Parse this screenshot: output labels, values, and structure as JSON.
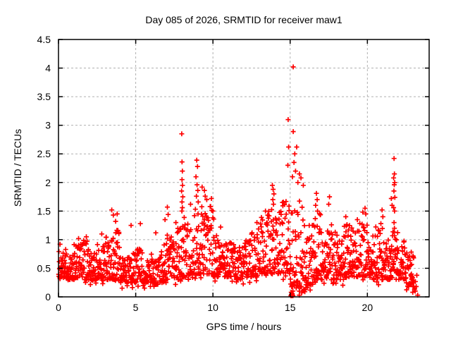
{
  "figure": {
    "background": "#ffffff",
    "frame_color": "#000000"
  },
  "chart_data": {
    "type": "scatter",
    "title": "Day 085 of 2026, SRMTID for receiver maw1",
    "xlabel": "GPS time / hours",
    "ylabel": "SRMTID / TECUs",
    "x_axis": {
      "min": 0,
      "max": 24,
      "ticks": [
        0,
        5,
        10,
        15,
        20
      ]
    },
    "y_axis": {
      "min": 0,
      "max": 4.5,
      "ticks": [
        0,
        0.5,
        1,
        1.5,
        2,
        2.5,
        3,
        3.5,
        4,
        4.5
      ]
    },
    "grid": {
      "show": true,
      "color": "#b0b0b0",
      "dash": "3,3"
    },
    "marker": {
      "shape": "plus",
      "color": "#ff0000",
      "size": 7,
      "stroke_width": 1.7
    },
    "legend": "none",
    "seed": 2026085,
    "band": {
      "comment": "dense baseline band of 30-second SRMTID samples, estimated envelope per 0.5 h bin: [hour_center, low, high, n_points]",
      "skew": 1.7,
      "bin_width": 0.5,
      "bins": [
        [
          0.25,
          0.33,
          0.85,
          34
        ],
        [
          0.75,
          0.3,
          0.75,
          34
        ],
        [
          1.25,
          0.33,
          0.95,
          34
        ],
        [
          1.75,
          0.3,
          1.0,
          34
        ],
        [
          2.25,
          0.3,
          0.8,
          34
        ],
        [
          2.75,
          0.32,
          0.95,
          34
        ],
        [
          3.25,
          0.3,
          1.05,
          34
        ],
        [
          3.75,
          0.28,
          1.2,
          34
        ],
        [
          4.25,
          0.25,
          0.7,
          34
        ],
        [
          4.75,
          0.25,
          0.8,
          34
        ],
        [
          5.25,
          0.25,
          0.85,
          34
        ],
        [
          5.75,
          0.25,
          0.65,
          34
        ],
        [
          6.25,
          0.22,
          0.75,
          34
        ],
        [
          6.75,
          0.25,
          0.95,
          34
        ],
        [
          7.25,
          0.3,
          1.1,
          34
        ],
        [
          7.75,
          0.3,
          1.2,
          34
        ],
        [
          8.25,
          0.35,
          1.4,
          34
        ],
        [
          8.75,
          0.4,
          1.55,
          34
        ],
        [
          9.25,
          0.4,
          1.7,
          34
        ],
        [
          9.75,
          0.4,
          1.6,
          34
        ],
        [
          10.25,
          0.35,
          1.1,
          34
        ],
        [
          10.75,
          0.35,
          0.95,
          34
        ],
        [
          11.25,
          0.35,
          0.95,
          34
        ],
        [
          11.75,
          0.3,
          0.9,
          34
        ],
        [
          12.25,
          0.35,
          1.0,
          34
        ],
        [
          12.75,
          0.35,
          1.2,
          34
        ],
        [
          13.25,
          0.4,
          1.4,
          34
        ],
        [
          13.75,
          0.4,
          1.6,
          34
        ],
        [
          14.25,
          0.4,
          1.55,
          34
        ],
        [
          14.75,
          0.4,
          1.7,
          34
        ],
        [
          15.25,
          0.15,
          1.6,
          34
        ],
        [
          15.75,
          0.1,
          1.8,
          34
        ],
        [
          16.25,
          0.2,
          1.3,
          34
        ],
        [
          16.75,
          0.3,
          1.5,
          34
        ],
        [
          17.25,
          0.3,
          1.2,
          34
        ],
        [
          17.75,
          0.3,
          1.5,
          34
        ],
        [
          18.25,
          0.3,
          1.1,
          34
        ],
        [
          18.75,
          0.35,
          1.35,
          34
        ],
        [
          19.25,
          0.35,
          1.2,
          34
        ],
        [
          19.75,
          0.35,
          1.55,
          34
        ],
        [
          20.25,
          0.3,
          1.1,
          34
        ],
        [
          20.75,
          0.3,
          1.3,
          34
        ],
        [
          21.25,
          0.3,
          1.0,
          34
        ],
        [
          21.75,
          0.35,
          1.2,
          34
        ],
        [
          22.25,
          0.3,
          1.0,
          34
        ],
        [
          22.75,
          0.18,
          0.8,
          30
        ],
        [
          23.05,
          0.08,
          0.4,
          10
        ]
      ]
    },
    "outliers": [
      [
        0.1,
        0.92
      ],
      [
        1.3,
        1.02
      ],
      [
        1.8,
        1.05
      ],
      [
        2.8,
        1.1
      ],
      [
        3.45,
        1.52
      ],
      [
        3.55,
        1.43
      ],
      [
        3.8,
        1.45
      ],
      [
        3.7,
        1.32
      ],
      [
        4.7,
        1.25
      ],
      [
        5.3,
        1.28
      ],
      [
        6.3,
        1.12
      ],
      [
        6.9,
        1.35
      ],
      [
        7.05,
        1.57
      ],
      [
        7.1,
        1.44
      ],
      [
        7.6,
        1.3
      ],
      [
        7.98,
        2.85
      ],
      [
        8.0,
        2.36
      ],
      [
        8.02,
        2.2
      ],
      [
        8.0,
        2.05
      ],
      [
        8.03,
        1.95
      ],
      [
        7.97,
        1.85
      ],
      [
        8.05,
        1.75
      ],
      [
        8.0,
        1.66
      ],
      [
        8.02,
        1.56
      ],
      [
        7.99,
        1.5
      ],
      [
        8.55,
        1.62
      ],
      [
        8.95,
        2.39
      ],
      [
        9.0,
        2.28
      ],
      [
        8.9,
        2.1
      ],
      [
        8.97,
        1.96
      ],
      [
        9.02,
        1.86
      ],
      [
        8.93,
        1.76
      ],
      [
        9.05,
        1.66
      ],
      [
        9.3,
        1.92
      ],
      [
        9.45,
        1.86
      ],
      [
        9.5,
        1.76
      ],
      [
        9.6,
        1.7
      ],
      [
        9.9,
        1.72
      ],
      [
        10.0,
        1.5
      ],
      [
        10.05,
        1.36
      ],
      [
        10.5,
        1.22
      ],
      [
        12.85,
        1.3
      ],
      [
        13.4,
        1.5
      ],
      [
        13.85,
        1.95
      ],
      [
        13.9,
        1.88
      ],
      [
        13.95,
        1.8
      ],
      [
        13.88,
        1.7
      ],
      [
        13.92,
        1.62
      ],
      [
        14.5,
        1.65
      ],
      [
        14.87,
        3.1
      ],
      [
        14.9,
        2.62
      ],
      [
        14.85,
        2.3
      ],
      [
        15.2,
        4.02
      ],
      [
        15.2,
        2.89
      ],
      [
        15.42,
        2.62
      ],
      [
        15.3,
        2.5
      ],
      [
        15.25,
        2.35
      ],
      [
        15.35,
        2.2
      ],
      [
        15.15,
        2.1
      ],
      [
        15.5,
        2.0
      ],
      [
        15.6,
        2.15
      ],
      [
        15.7,
        2.08
      ],
      [
        15.85,
        1.95
      ],
      [
        16.7,
        1.81
      ],
      [
        16.75,
        1.7
      ],
      [
        16.65,
        1.6
      ],
      [
        17.55,
        1.75
      ],
      [
        17.5,
        1.62
      ],
      [
        18.6,
        1.4
      ],
      [
        19.35,
        1.35
      ],
      [
        19.85,
        1.55
      ],
      [
        19.9,
        1.45
      ],
      [
        20.95,
        1.52
      ],
      [
        21.0,
        1.4
      ],
      [
        21.55,
        1.72
      ],
      [
        21.6,
        1.6
      ],
      [
        21.73,
        2.42
      ],
      [
        21.75,
        2.15
      ],
      [
        21.7,
        2.08
      ],
      [
        21.77,
        2.0
      ],
      [
        21.74,
        1.96
      ],
      [
        21.72,
        1.85
      ],
      [
        21.78,
        1.74
      ],
      [
        21.7,
        1.56
      ],
      [
        21.76,
        1.5
      ],
      [
        21.73,
        1.3
      ],
      [
        21.75,
        1.2
      ],
      [
        15.05,
        0.02
      ],
      [
        15.08,
        0.04
      ],
      [
        15.1,
        0.02
      ],
      [
        15.12,
        0.06
      ],
      [
        15.15,
        0.03
      ],
      [
        15.18,
        0.02
      ],
      [
        15.07,
        0.08
      ],
      [
        15.13,
        0.05
      ],
      [
        15.6,
        0.1
      ],
      [
        15.75,
        0.07
      ],
      [
        15.9,
        0.12
      ],
      [
        16.1,
        0.16
      ],
      [
        16.3,
        0.12
      ],
      [
        16.45,
        0.22
      ],
      [
        22.85,
        0.4
      ],
      [
        22.9,
        0.33
      ],
      [
        22.95,
        0.25
      ],
      [
        23.0,
        0.18
      ],
      [
        23.05,
        0.13
      ],
      [
        23.1,
        0.1
      ]
    ]
  }
}
